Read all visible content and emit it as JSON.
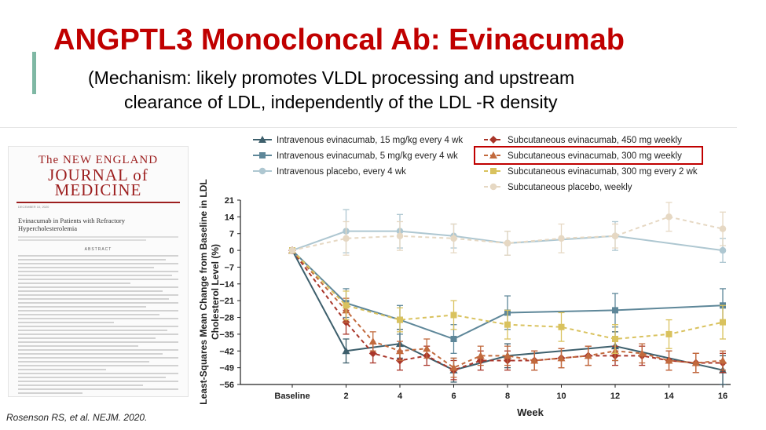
{
  "slide": {
    "title": "ANGPTL3 Monocloncal Ab: Evinacumab",
    "subtitle_line1": "(Mechanism: likely promotes VLDL processing and upstream",
    "subtitle_line2": "clearance of LDL, independently of the LDL  -R density",
    "citation": "Rosenson RS, et al. NEJM. 2020."
  },
  "journal": {
    "name_line1": "The NEW ENGLAND",
    "name_line2": "JOURNAL of MEDICINE",
    "date": "DECEMBER 10, 2020",
    "article_title": "Evinacumab in Patients with Refractory Hypercholesterolemia",
    "section": "ABSTRACT"
  },
  "chart_data": {
    "type": "line",
    "ylabel": "Least-Squares Mean Change from Baseline in LDL Cholesterol Level (%)",
    "xlabel": "Week",
    "x_ticks": [
      "Baseline",
      "2",
      "4",
      "6",
      "8",
      "10",
      "12",
      "14",
      "16"
    ],
    "x_tick_values": [
      0,
      2,
      4,
      6,
      8,
      10,
      12,
      14,
      16
    ],
    "y_ticks": [
      21,
      14,
      7,
      0,
      -7,
      -14,
      -21,
      -28,
      -35,
      -42,
      -49,
      -56
    ],
    "ylim": [
      -56,
      21
    ],
    "xlim": [
      0,
      16
    ],
    "legend_position": "top",
    "highlighted_series": "Subcutaneous evinacumab, 300 mg weekly",
    "series": [
      {
        "name": "Intravenous evinacumab, 15 mg/kg every 4 wk",
        "color": "#3d5f6c",
        "marker": "triangle",
        "dashed": false,
        "x": [
          0,
          2,
          4,
          6,
          8,
          12,
          16
        ],
        "y": [
          0,
          -42,
          -39,
          -50,
          -44,
          -40,
          -50
        ],
        "err": [
          0,
          5,
          6,
          5,
          5,
          6,
          6
        ]
      },
      {
        "name": "Intravenous evinacumab, 5 mg/kg every 4 wk",
        "color": "#5e8799",
        "marker": "square",
        "dashed": false,
        "x": [
          0,
          2,
          4,
          6,
          8,
          12,
          16
        ],
        "y": [
          0,
          -22,
          -29,
          -37,
          -26,
          -25,
          -23
        ],
        "err": [
          0,
          6,
          6,
          6,
          7,
          7,
          7
        ]
      },
      {
        "name": "Intravenous placebo, every 4 wk",
        "color": "#aec7d1",
        "marker": "circle",
        "dashed": false,
        "x": [
          0,
          2,
          4,
          6,
          8,
          12,
          16
        ],
        "y": [
          0,
          8,
          8,
          6,
          3,
          6,
          0
        ],
        "err": [
          0,
          9,
          7,
          5,
          5,
          6,
          5
        ]
      },
      {
        "name": "Subcutaneous evinacumab, 450 mg weekly",
        "color": "#a9362a",
        "marker": "diamond",
        "dashed": true,
        "x": [
          0,
          2,
          3,
          4,
          5,
          6,
          7,
          8,
          9,
          10,
          11,
          12,
          13,
          14,
          15,
          16
        ],
        "y": [
          0,
          -30,
          -43,
          -46,
          -44,
          -50,
          -46,
          -46,
          -46,
          -45,
          -44,
          -44,
          -44,
          -46,
          -47,
          -47
        ],
        "err": [
          0,
          5,
          4,
          4,
          4,
          4,
          4,
          4,
          4,
          4,
          4,
          4,
          4,
          4,
          4,
          4
        ]
      },
      {
        "name": "Subcutaneous evinacumab, 300 mg weekly",
        "color": "#c26a3d",
        "marker": "triangle",
        "dashed": true,
        "x": [
          0,
          2,
          3,
          4,
          5,
          6,
          7,
          8,
          9,
          10,
          11,
          12,
          13,
          14,
          15,
          16
        ],
        "y": [
          0,
          -25,
          -38,
          -42,
          -41,
          -49,
          -44,
          -44,
          -46,
          -45,
          -44,
          -42,
          -43,
          -46,
          -47,
          -46
        ],
        "err": [
          0,
          5,
          4,
          4,
          4,
          4,
          4,
          4,
          4,
          4,
          4,
          4,
          4,
          4,
          4,
          4
        ]
      },
      {
        "name": "Subcutaneous evinacumab, 300 mg every 2 wk",
        "color": "#d9c25e",
        "marker": "square",
        "dashed": true,
        "x": [
          0,
          2,
          4,
          6,
          8,
          10,
          12,
          14,
          16
        ],
        "y": [
          0,
          -23,
          -29,
          -27,
          -31,
          -32,
          -37,
          -35,
          -30
        ],
        "err": [
          0,
          6,
          5,
          6,
          6,
          6,
          6,
          6,
          7
        ]
      },
      {
        "name": "Subcutaneous placebo, weekly",
        "color": "#e6d8c3",
        "marker": "circle",
        "dashed": true,
        "x": [
          0,
          2,
          4,
          6,
          8,
          10,
          12,
          14,
          16
        ],
        "y": [
          0,
          5,
          6,
          5,
          3,
          5,
          6,
          14,
          9
        ],
        "err": [
          0,
          7,
          6,
          6,
          5,
          6,
          5,
          6,
          7
        ]
      }
    ]
  }
}
